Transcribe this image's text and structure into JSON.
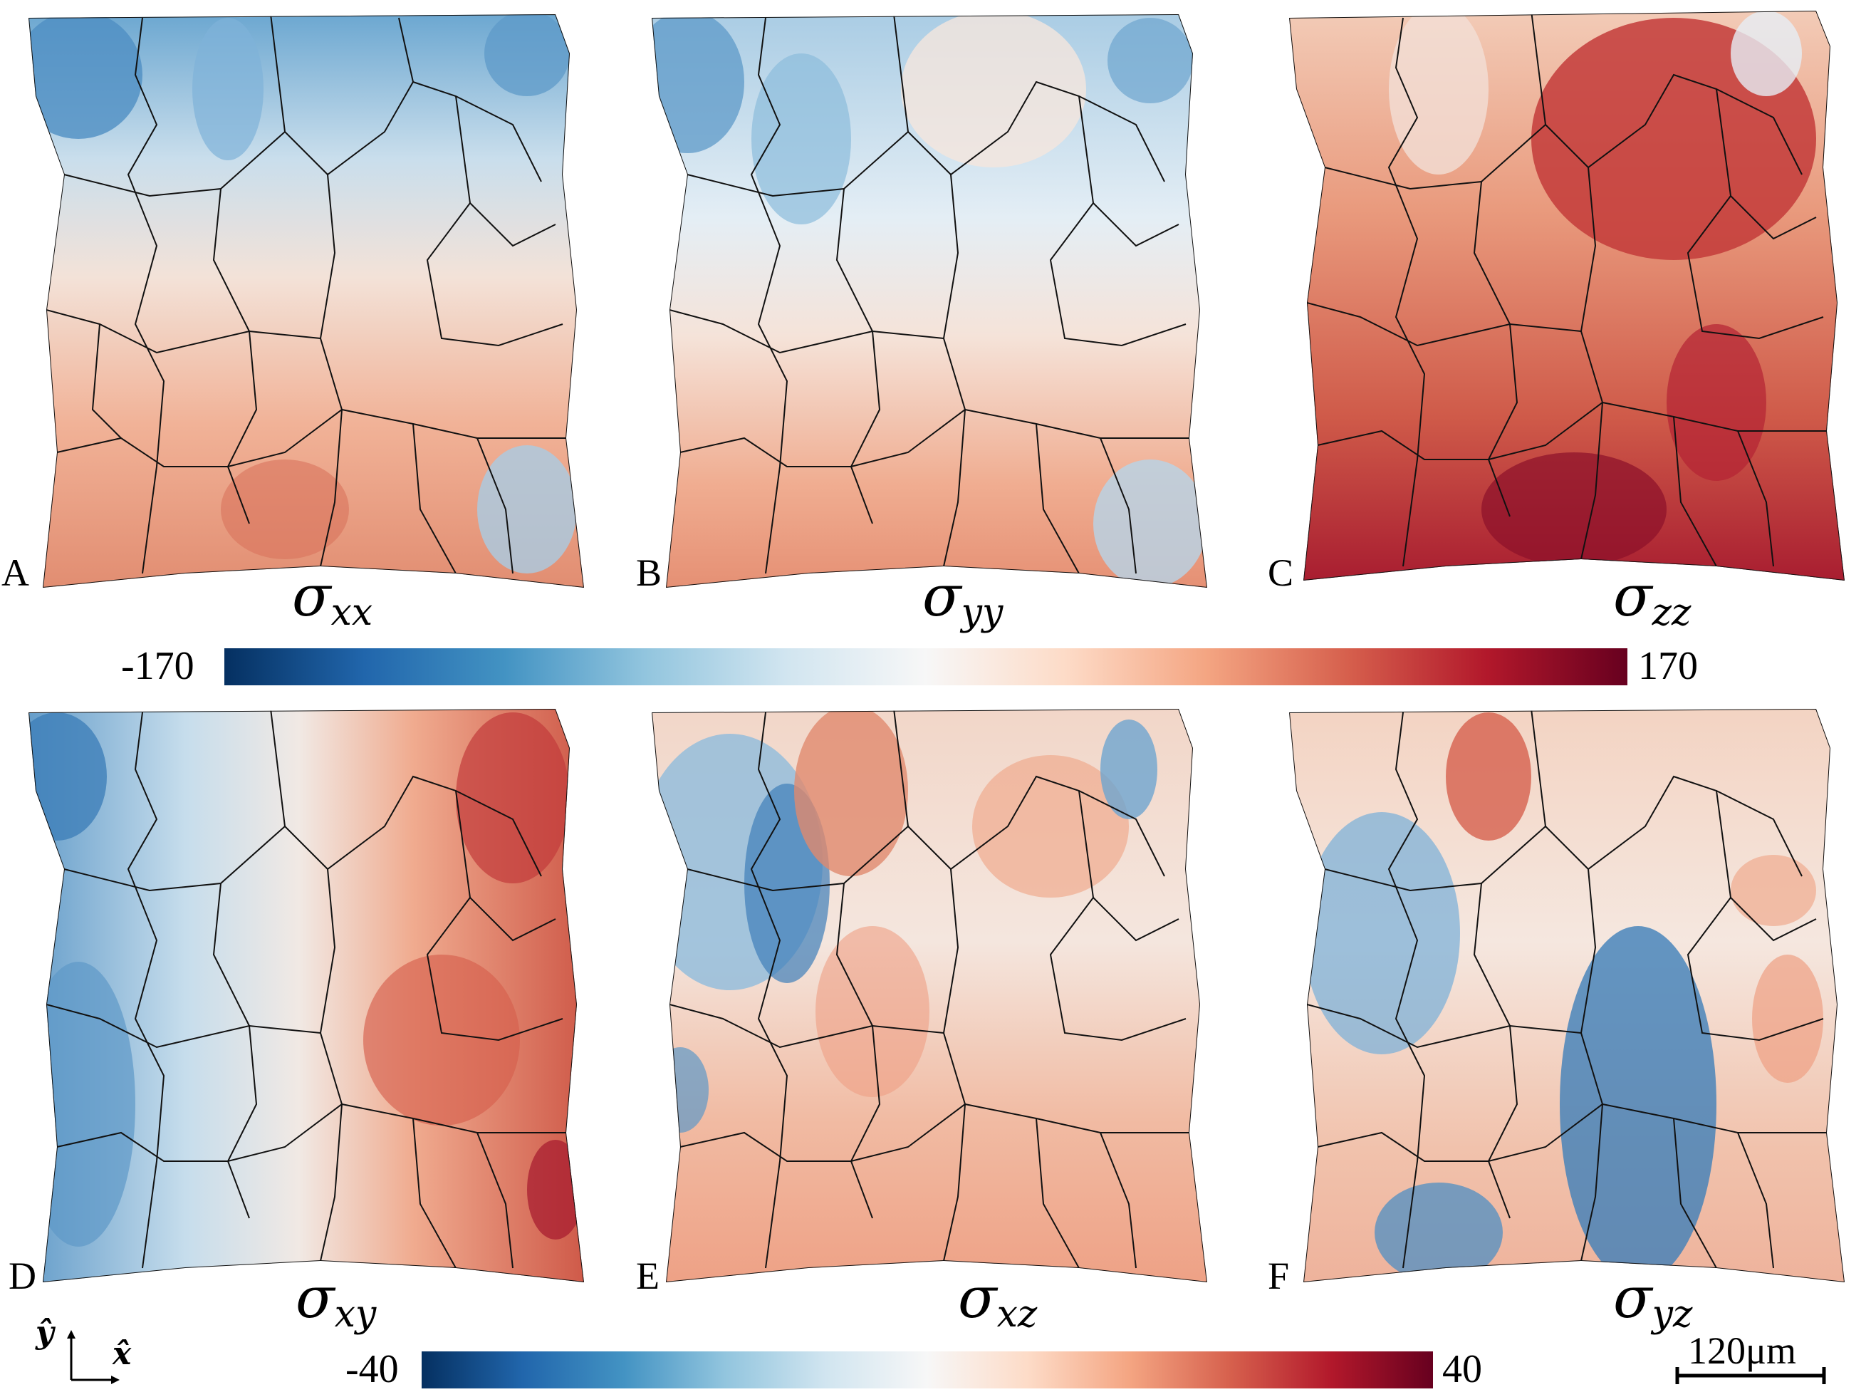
{
  "panels": [
    {
      "id": "A",
      "label": "A",
      "component": "xx",
      "tone": "mild-diverging"
    },
    {
      "id": "B",
      "label": "B",
      "component": "yy",
      "tone": "mild-diverging"
    },
    {
      "id": "C",
      "label": "C",
      "component": "zz",
      "tone": "strong-red"
    },
    {
      "id": "D",
      "label": "D",
      "component": "xy",
      "tone": "blue-left-red-right"
    },
    {
      "id": "E",
      "label": "E",
      "component": "xz",
      "tone": "mixed"
    },
    {
      "id": "F",
      "label": "F",
      "component": "yz",
      "tone": "mixed-blue-center"
    }
  ],
  "sigma_symbol": "σ",
  "colorbar_top": {
    "min_label": "-170",
    "max_label": "170",
    "colormap": "RdBu_r"
  },
  "colorbar_bottom": {
    "min_label": "-40",
    "max_label": "40",
    "colormap": "RdBu_r"
  },
  "axes_glyph": {
    "y_label": "ŷ",
    "x_label": "x̂"
  },
  "scale_bar": {
    "label": "120μm"
  },
  "colors": {
    "deep_blue": "#053061",
    "blue": "#2166ac",
    "light_blue": "#92c5de",
    "white": "#f7f7f7",
    "light_red": "#f4a582",
    "red": "#d6604d",
    "deep_red": "#67001f",
    "boundary": "#111111"
  }
}
